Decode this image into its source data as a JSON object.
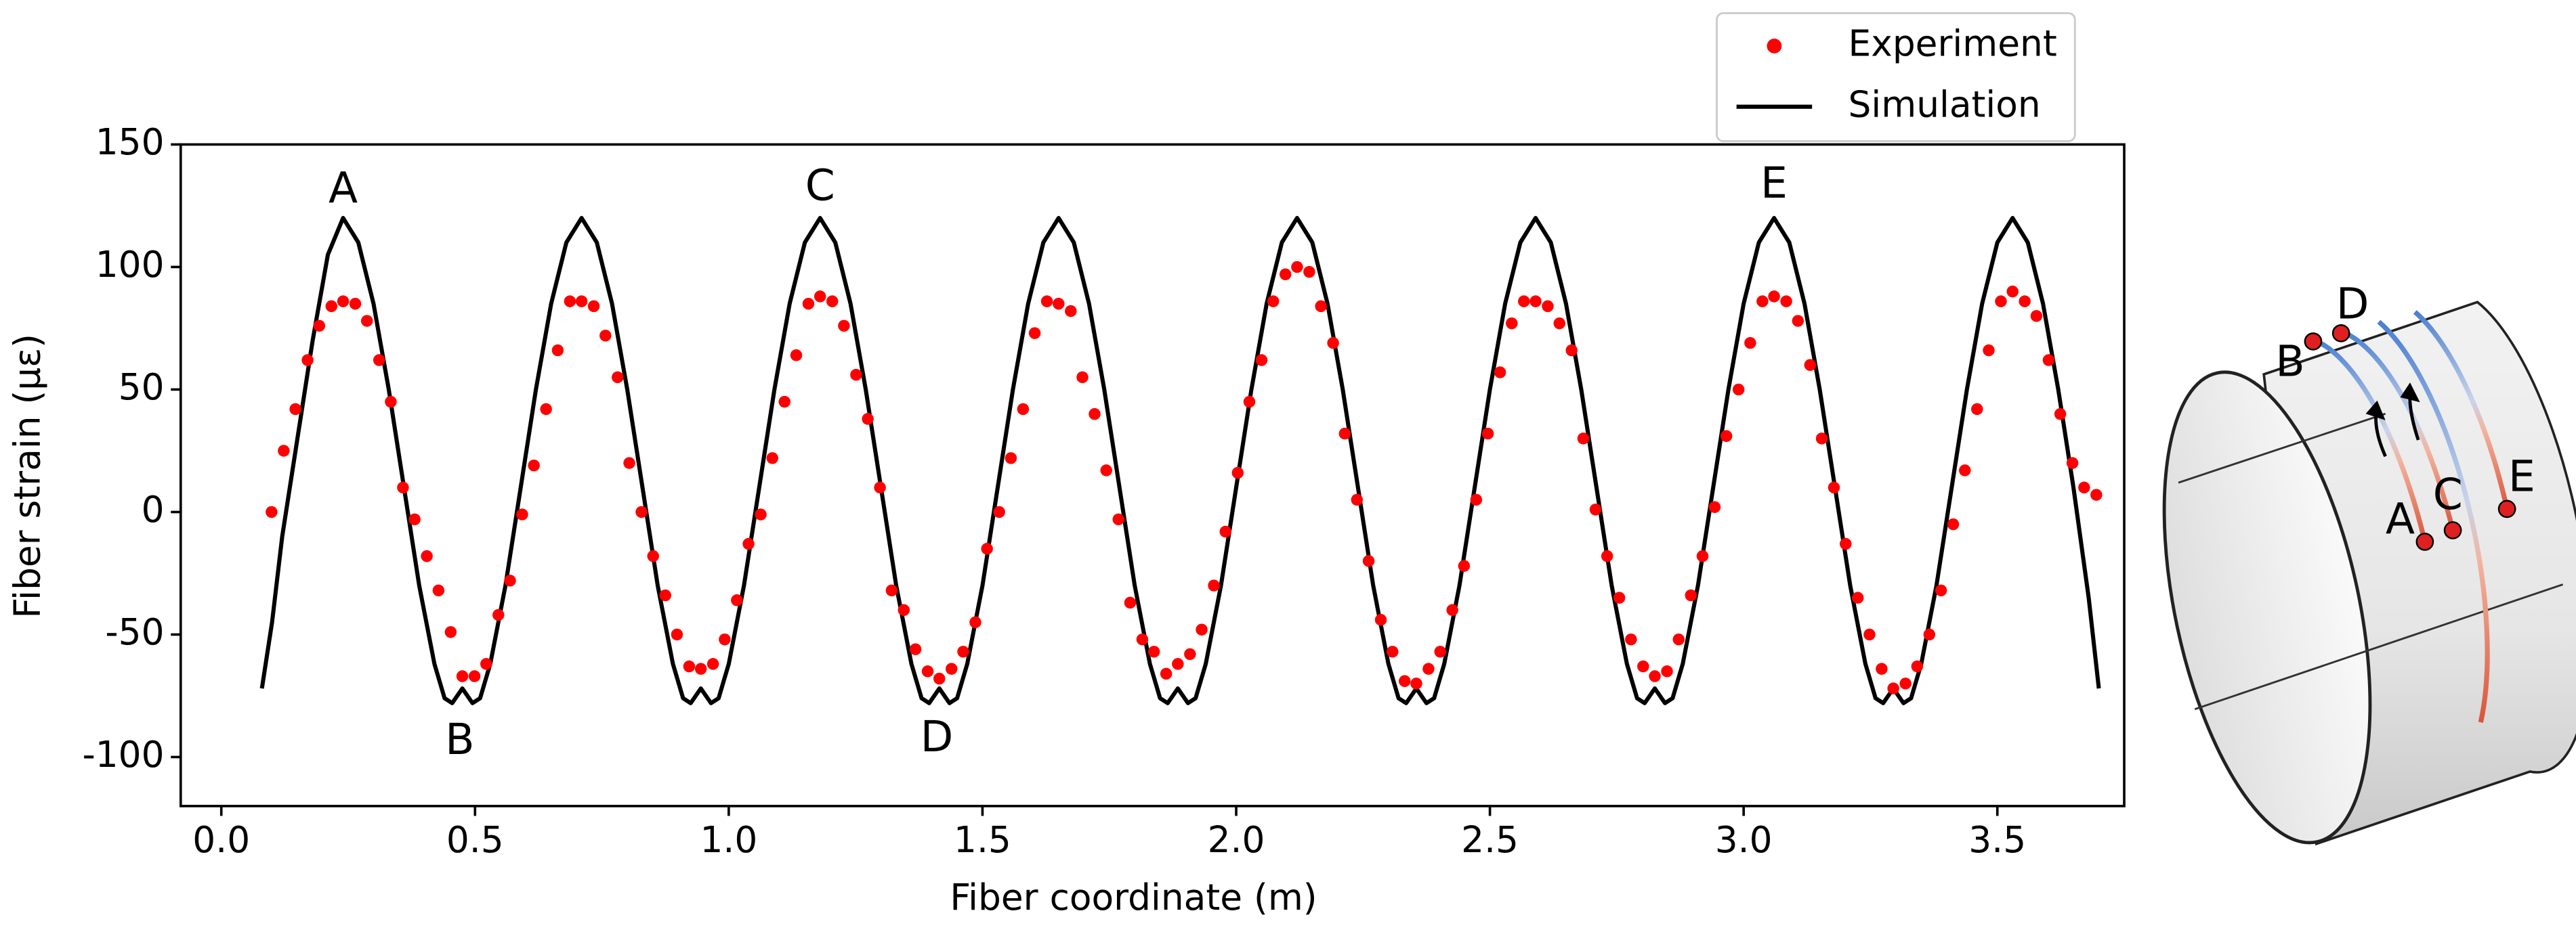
{
  "chart_data": {
    "type": "scatter_line",
    "xlabel": "Fiber coordinate (m)",
    "ylabel": "Fiber strain (με)",
    "xlim": [
      -0.08,
      3.75
    ],
    "ylim": [
      -120,
      150
    ],
    "xticks": [
      {
        "value": 0,
        "label": "0.0"
      },
      0.5,
      {
        "value": 1,
        "label": "1.0"
      },
      1.5,
      {
        "value": 2,
        "label": "2.0"
      },
      2.5,
      {
        "value": 3,
        "label": "3.0"
      },
      3.5
    ],
    "yticks": [
      150,
      100,
      50,
      0,
      -50,
      -100
    ],
    "legend": "upper right",
    "series": [
      {
        "name": "Experiment",
        "color": "#ff0000",
        "style": "dots",
        "x": [
          0.099,
          0.123,
          0.146,
          0.17,
          0.193,
          0.217,
          0.24,
          0.264,
          0.287,
          0.311,
          0.334,
          0.358,
          0.381,
          0.405,
          0.428,
          0.452,
          0.475,
          0.499,
          0.522,
          0.546,
          0.569,
          0.593,
          0.616,
          0.64,
          0.663,
          0.687,
          0.71,
          0.734,
          0.757,
          0.781,
          0.804,
          0.828,
          0.851,
          0.875,
          0.898,
          0.922,
          0.945,
          0.969,
          0.992,
          1.016,
          1.039,
          1.063,
          1.086,
          1.11,
          1.133,
          1.157,
          1.18,
          1.204,
          1.227,
          1.251,
          1.274,
          1.298,
          1.321,
          1.345,
          1.368,
          1.392,
          1.415,
          1.439,
          1.462,
          1.486,
          1.509,
          1.533,
          1.556,
          1.58,
          1.603,
          1.627,
          1.65,
          1.674,
          1.697,
          1.721,
          1.744,
          1.768,
          1.791,
          1.815,
          1.838,
          1.862,
          1.885,
          1.909,
          1.932,
          1.956,
          1.979,
          2.003,
          2.026,
          2.05,
          2.073,
          2.097,
          2.12,
          2.144,
          2.167,
          2.191,
          2.214,
          2.238,
          2.261,
          2.285,
          2.308,
          2.332,
          2.355,
          2.379,
          2.402,
          2.426,
          2.449,
          2.473,
          2.496,
          2.52,
          2.543,
          2.567,
          2.59,
          2.614,
          2.637,
          2.661,
          2.684,
          2.708,
          2.731,
          2.755,
          2.778,
          2.802,
          2.825,
          2.849,
          2.872,
          2.896,
          2.919,
          2.943,
          2.966,
          2.99,
          3.013,
          3.037,
          3.06,
          3.084,
          3.107,
          3.131,
          3.154,
          3.178,
          3.201,
          3.225,
          3.248,
          3.272,
          3.295,
          3.319,
          3.342,
          3.366,
          3.389,
          3.413,
          3.436,
          3.46,
          3.483,
          3.507,
          3.53,
          3.554,
          3.577,
          3.601,
          3.624,
          3.648,
          3.671,
          3.695
        ],
        "values": [
          0,
          25,
          42,
          62,
          76,
          84,
          86,
          85,
          78,
          62,
          45,
          10,
          -3,
          -18,
          -32,
          -49,
          -67,
          -67,
          -62,
          -42,
          -28,
          -1,
          19,
          42,
          66,
          86,
          86,
          84,
          72,
          55,
          20,
          0,
          -18,
          -34,
          -50,
          -63,
          -64,
          -62,
          -52,
          -36,
          -13,
          -1,
          22,
          45,
          64,
          85,
          88,
          86,
          76,
          56,
          38,
          10,
          -32,
          -40,
          -56,
          -65,
          -68,
          -64,
          -57,
          -45,
          -15,
          0,
          22,
          42,
          73,
          86,
          85,
          82,
          55,
          40,
          17,
          -3,
          -37,
          -52,
          -57,
          -66,
          -62,
          -58,
          -48,
          -30,
          -8,
          16,
          45,
          62,
          86,
          97,
          100,
          98,
          84,
          69,
          32,
          5,
          -20,
          -44,
          -57,
          -69,
          -70,
          -64,
          -57,
          -40,
          -22,
          5,
          32,
          57,
          77,
          86,
          86,
          84,
          77,
          66,
          30,
          1,
          -18,
          -35,
          -52,
          -63,
          -67,
          -65,
          -52,
          -34,
          -18,
          2,
          31,
          50,
          69,
          86,
          88,
          86,
          78,
          60,
          30,
          10,
          -13,
          -35,
          -50,
          -64,
          -72,
          -70,
          -63,
          -50,
          -32,
          -5,
          17,
          42,
          66,
          86,
          90,
          86,
          80,
          62,
          40,
          20,
          10,
          7
        ]
      },
      {
        "name": "Simulation",
        "color": "#000000",
        "style": "line",
        "x": [
          0.08,
          0.1,
          0.12,
          0.15,
          0.18,
          0.21,
          0.24,
          0.27,
          0.3,
          0.33,
          0.36,
          0.39,
          0.42,
          0.44,
          0.455,
          0.475,
          0.495,
          0.51,
          0.53,
          0.56,
          0.59,
          0.62,
          0.65,
          0.68,
          0.71,
          0.74,
          0.77,
          0.8,
          0.83,
          0.86,
          0.89,
          0.91,
          0.925,
          0.945,
          0.965,
          0.98,
          1.0,
          1.03,
          1.06,
          1.09,
          1.12,
          1.15,
          1.18,
          1.21,
          1.24,
          1.27,
          1.3,
          1.33,
          1.36,
          1.38,
          1.395,
          1.415,
          1.435,
          1.45,
          1.47,
          1.5,
          1.53,
          1.56,
          1.59,
          1.62,
          1.65,
          1.68,
          1.71,
          1.74,
          1.77,
          1.8,
          1.83,
          1.85,
          1.865,
          1.885,
          1.905,
          1.92,
          1.94,
          1.97,
          2.0,
          2.03,
          2.06,
          2.09,
          2.12,
          2.15,
          2.18,
          2.21,
          2.24,
          2.27,
          2.3,
          2.32,
          2.335,
          2.355,
          2.375,
          2.39,
          2.41,
          2.44,
          2.47,
          2.5,
          2.53,
          2.56,
          2.59,
          2.62,
          2.65,
          2.68,
          2.71,
          2.74,
          2.77,
          2.79,
          2.805,
          2.825,
          2.845,
          2.86,
          2.88,
          2.91,
          2.94,
          2.97,
          3.0,
          3.03,
          3.06,
          3.09,
          3.12,
          3.15,
          3.18,
          3.21,
          3.24,
          3.26,
          3.275,
          3.295,
          3.315,
          3.33,
          3.35,
          3.38,
          3.41,
          3.44,
          3.47,
          3.5,
          3.53,
          3.56,
          3.59,
          3.62,
          3.65,
          3.68,
          3.7
        ],
        "values": [
          -72,
          -45,
          -10,
          30,
          70,
          105,
          120,
          110,
          85,
          50,
          10,
          -30,
          -62,
          -76,
          -78,
          -72,
          -78,
          -76,
          -62,
          -30,
          10,
          50,
          85,
          110,
          120,
          110,
          85,
          50,
          10,
          -30,
          -62,
          -76,
          -78,
          -72,
          -78,
          -76,
          -62,
          -30,
          10,
          50,
          85,
          110,
          120,
          110,
          85,
          50,
          10,
          -30,
          -62,
          -76,
          -78,
          -72,
          -78,
          -76,
          -62,
          -30,
          10,
          50,
          85,
          110,
          120,
          110,
          85,
          50,
          10,
          -30,
          -62,
          -76,
          -78,
          -72,
          -78,
          -76,
          -62,
          -30,
          10,
          50,
          85,
          110,
          120,
          110,
          85,
          50,
          10,
          -30,
          -62,
          -76,
          -78,
          -72,
          -78,
          -76,
          -62,
          -30,
          10,
          50,
          85,
          110,
          120,
          110,
          85,
          50,
          10,
          -30,
          -62,
          -76,
          -78,
          -72,
          -78,
          -76,
          -62,
          -30,
          10,
          50,
          85,
          110,
          120,
          110,
          85,
          50,
          10,
          -30,
          -62,
          -76,
          -78,
          -72,
          -78,
          -76,
          -62,
          -30,
          10,
          50,
          85,
          110,
          120,
          110,
          85,
          50,
          10,
          -35,
          -72
        ]
      }
    ],
    "annotations": [
      {
        "text": "A",
        "x": 0.24,
        "y": 131
      },
      {
        "text": "B",
        "x": 0.47,
        "y": -94
      },
      {
        "text": "C",
        "x": 1.18,
        "y": 132
      },
      {
        "text": "D",
        "x": 1.41,
        "y": -93
      },
      {
        "text": "E",
        "x": 3.06,
        "y": 133
      }
    ]
  },
  "diagram": {
    "labels": [
      "A",
      "B",
      "C",
      "D",
      "E"
    ]
  }
}
